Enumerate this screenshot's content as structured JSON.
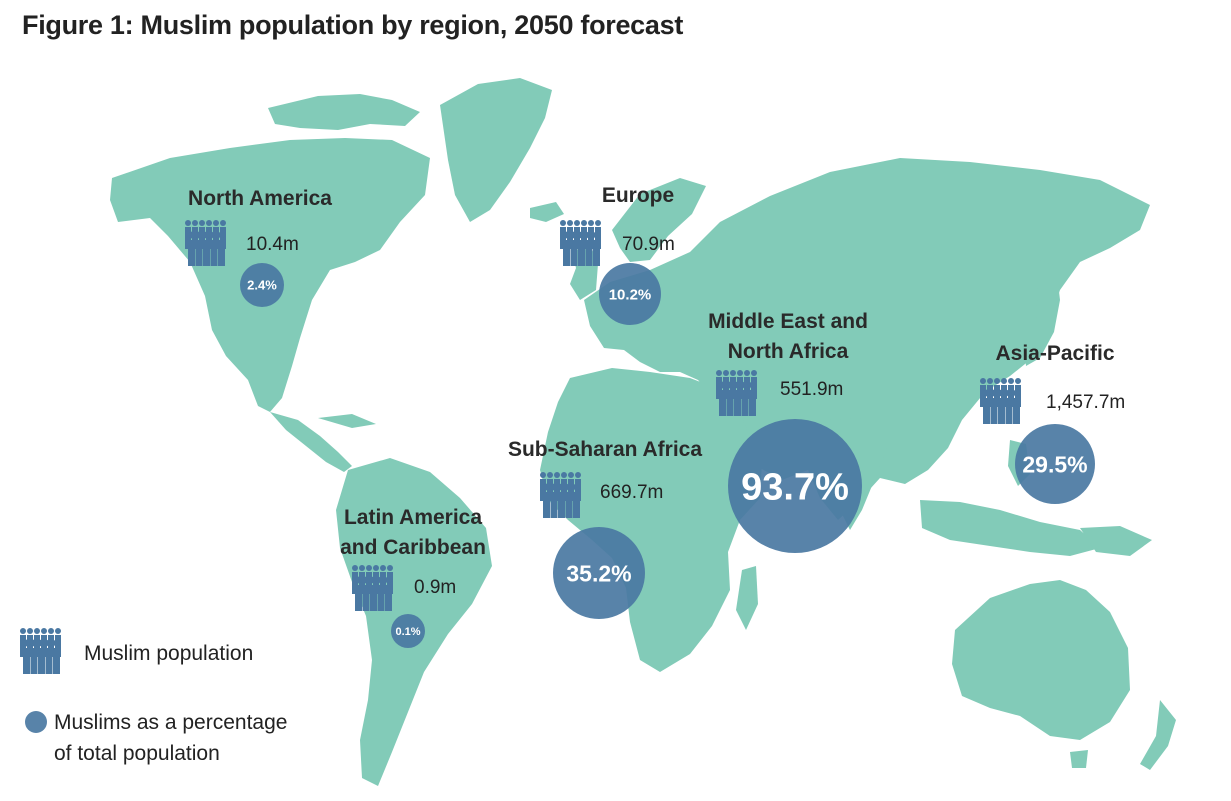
{
  "title": "Figure 1: Muslim population by region, 2050 forecast",
  "colors": {
    "land": "#82cbb8",
    "bubble": "#4a78a2",
    "icon": "#4a78a2"
  },
  "regions": [
    {
      "id": "north-america",
      "name": [
        "North America"
      ],
      "population": "10.4m",
      "percentage": "2.4%",
      "percent_value": 2.4
    },
    {
      "id": "europe",
      "name": [
        "Europe"
      ],
      "population": "70.9m",
      "percentage": "10.2%",
      "percent_value": 10.2
    },
    {
      "id": "middle-east-north-africa",
      "name": [
        "Middle East and",
        "North Africa"
      ],
      "population": "551.9m",
      "percentage": "93.7%",
      "percent_value": 93.7
    },
    {
      "id": "asia-pacific",
      "name": [
        "Asia-Pacific"
      ],
      "population": "1,457.7m",
      "percentage": "29.5%",
      "percent_value": 29.5
    },
    {
      "id": "sub-saharan-africa",
      "name": [
        "Sub-Saharan Africa"
      ],
      "population": "669.7m",
      "percentage": "35.2%",
      "percent_value": 35.2
    },
    {
      "id": "latin-america-caribbean",
      "name": [
        "Latin America",
        "and Caribbean"
      ],
      "population": "0.9m",
      "percentage": "0.1%",
      "percent_value": 0.1
    }
  ],
  "legend": {
    "population_icon": "people-group-icon",
    "population_label": "Muslim population",
    "percentage_icon": "circle-bubble-icon",
    "percentage_label_lines": [
      "Muslims as a percentage",
      "of total population"
    ]
  }
}
